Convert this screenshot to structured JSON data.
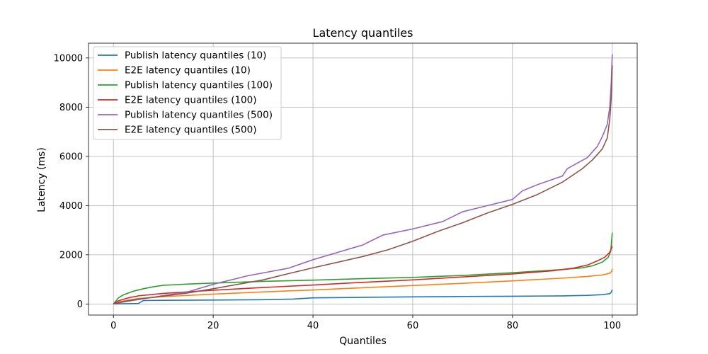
{
  "chart_data": {
    "type": "line",
    "title": "Latency quantiles",
    "xlabel": "Quantiles",
    "ylabel": "Latency (ms)",
    "xlim": [
      -5,
      105
    ],
    "ylim": [
      -450,
      10600
    ],
    "xticks": [
      0,
      20,
      40,
      60,
      80,
      100
    ],
    "yticks": [
      0,
      2000,
      4000,
      6000,
      8000,
      10000
    ],
    "grid": true,
    "legend_position": "upper-left",
    "series": [
      {
        "name": "Publish latency quantiles (10)",
        "color": "#1f77b4",
        "points": [
          [
            0,
            0
          ],
          [
            5,
            20
          ],
          [
            5.5,
            80
          ],
          [
            6,
            140
          ],
          [
            10,
            150
          ],
          [
            20,
            160
          ],
          [
            30,
            175
          ],
          [
            36,
            200
          ],
          [
            40,
            250
          ],
          [
            50,
            270
          ],
          [
            60,
            290
          ],
          [
            70,
            305
          ],
          [
            80,
            315
          ],
          [
            90,
            330
          ],
          [
            95,
            350
          ],
          [
            98,
            380
          ],
          [
            99.5,
            420
          ],
          [
            99.8,
            480
          ],
          [
            100,
            580
          ]
        ]
      },
      {
        "name": "E2E latency quantiles (10)",
        "color": "#ff7f0e",
        "points": [
          [
            0,
            0
          ],
          [
            1,
            80
          ],
          [
            3,
            160
          ],
          [
            5,
            220
          ],
          [
            10,
            300
          ],
          [
            20,
            400
          ],
          [
            30,
            490
          ],
          [
            40,
            570
          ],
          [
            50,
            660
          ],
          [
            60,
            750
          ],
          [
            70,
            840
          ],
          [
            80,
            940
          ],
          [
            90,
            1050
          ],
          [
            95,
            1120
          ],
          [
            98,
            1180
          ],
          [
            99.5,
            1250
          ],
          [
            99.9,
            1330
          ],
          [
            100,
            1430
          ]
        ]
      },
      {
        "name": "Publish latency quantiles (100)",
        "color": "#2ca02c",
        "points": [
          [
            0,
            0
          ],
          [
            0.5,
            120
          ],
          [
            1,
            250
          ],
          [
            2,
            370
          ],
          [
            4,
            520
          ],
          [
            6,
            620
          ],
          [
            8,
            700
          ],
          [
            10,
            760
          ],
          [
            15,
            810
          ],
          [
            20,
            850
          ],
          [
            30,
            920
          ],
          [
            40,
            970
          ],
          [
            50,
            1030
          ],
          [
            60,
            1080
          ],
          [
            70,
            1160
          ],
          [
            80,
            1270
          ],
          [
            90,
            1400
          ],
          [
            94,
            1470
          ],
          [
            96,
            1550
          ],
          [
            98,
            1700
          ],
          [
            99.2,
            1900
          ],
          [
            99.7,
            2150
          ],
          [
            100,
            2900
          ]
        ]
      },
      {
        "name": "E2E latency quantiles (100)",
        "color": "#d62728",
        "points": [
          [
            0,
            0
          ],
          [
            1,
            130
          ],
          [
            3,
            250
          ],
          [
            5,
            330
          ],
          [
            10,
            430
          ],
          [
            20,
            560
          ],
          [
            30,
            670
          ],
          [
            40,
            770
          ],
          [
            50,
            880
          ],
          [
            60,
            980
          ],
          [
            70,
            1100
          ],
          [
            80,
            1220
          ],
          [
            88,
            1350
          ],
          [
            92,
            1450
          ],
          [
            95,
            1580
          ],
          [
            97,
            1750
          ],
          [
            98.5,
            1900
          ],
          [
            99.5,
            2100
          ],
          [
            100,
            2350
          ]
        ]
      },
      {
        "name": "Publish latency quantiles (500)",
        "color": "#9467bd",
        "points": [
          [
            0,
            0
          ],
          [
            2,
            80
          ],
          [
            5,
            180
          ],
          [
            10,
            340
          ],
          [
            15,
            500
          ],
          [
            20,
            800
          ],
          [
            27,
            1150
          ],
          [
            35,
            1450
          ],
          [
            40,
            1800
          ],
          [
            45,
            2100
          ],
          [
            50,
            2400
          ],
          [
            52,
            2600
          ],
          [
            54,
            2800
          ],
          [
            60,
            3050
          ],
          [
            66,
            3350
          ],
          [
            70,
            3750
          ],
          [
            75,
            4000
          ],
          [
            80,
            4250
          ],
          [
            82,
            4600
          ],
          [
            85,
            4850
          ],
          [
            90,
            5200
          ],
          [
            91,
            5500
          ],
          [
            95,
            5950
          ],
          [
            97,
            6400
          ],
          [
            98,
            6800
          ],
          [
            99,
            7300
          ],
          [
            99.5,
            8000
          ],
          [
            99.8,
            9000
          ],
          [
            100,
            10150
          ]
        ]
      },
      {
        "name": "E2E latency quantiles (500)",
        "color": "#8c564b",
        "points": [
          [
            0,
            0
          ],
          [
            2,
            100
          ],
          [
            5,
            200
          ],
          [
            10,
            320
          ],
          [
            15,
            450
          ],
          [
            20,
            620
          ],
          [
            25,
            800
          ],
          [
            30,
            980
          ],
          [
            35,
            1230
          ],
          [
            40,
            1470
          ],
          [
            45,
            1700
          ],
          [
            50,
            1930
          ],
          [
            55,
            2200
          ],
          [
            60,
            2550
          ],
          [
            65,
            2950
          ],
          [
            70,
            3300
          ],
          [
            75,
            3700
          ],
          [
            80,
            4050
          ],
          [
            85,
            4450
          ],
          [
            90,
            4950
          ],
          [
            94,
            5500
          ],
          [
            96,
            5850
          ],
          [
            98,
            6300
          ],
          [
            99,
            6750
          ],
          [
            99.5,
            7500
          ],
          [
            99.8,
            8400
          ],
          [
            100,
            9700
          ]
        ]
      }
    ]
  }
}
